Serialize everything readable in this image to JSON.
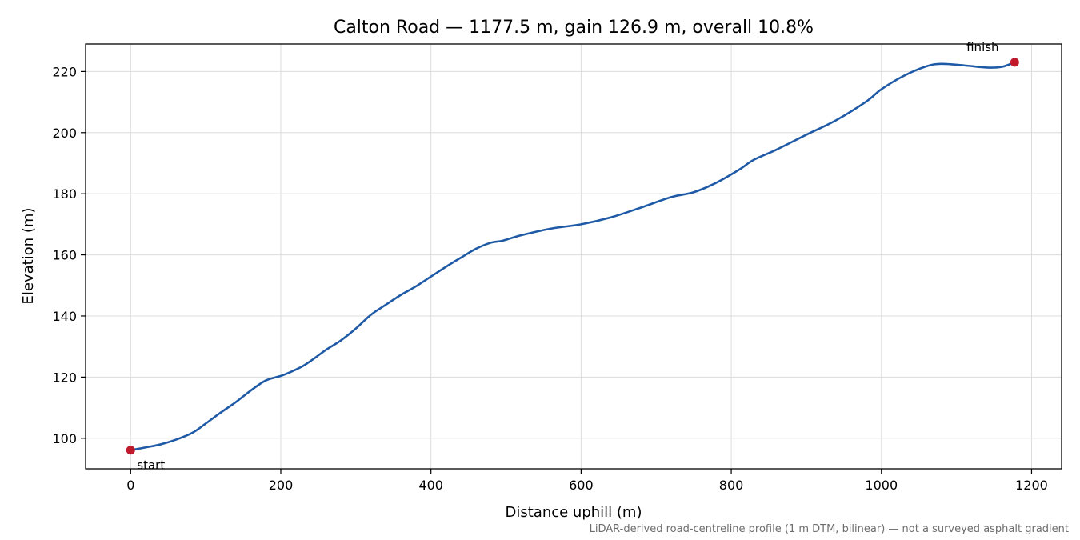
{
  "chart_data": {
    "type": "line",
    "title": "Calton Road — 1177.5 m, gain 126.9 m, overall 10.8%",
    "xlabel": "Distance uphill (m)",
    "ylabel": "Elevation (m)",
    "xlim": [
      -60,
      1240
    ],
    "ylim": [
      90,
      229
    ],
    "xticks": [
      0,
      200,
      400,
      600,
      800,
      1000,
      1200
    ],
    "yticks": [
      100,
      120,
      140,
      160,
      180,
      200,
      220
    ],
    "grid": true,
    "line_color": "#1f5aa6",
    "marker_color": "#c0192c",
    "series": [
      {
        "x": [
          0,
          20,
          40,
          60,
          80,
          90,
          100,
          120,
          140,
          160,
          180,
          200,
          215,
          230,
          245,
          260,
          280,
          300,
          320,
          340,
          360,
          380,
          400,
          420,
          440,
          460,
          480,
          495,
          520,
          560,
          600,
          640,
          680,
          720,
          750,
          780,
          810,
          830,
          860,
          900,
          940,
          980,
          1000,
          1030,
          1060,
          1080,
          1110,
          1140,
          1160,
          1177.5
        ],
        "y": [
          96.1,
          97.0,
          98.0,
          99.5,
          101.5,
          103.0,
          104.8,
          108.4,
          111.8,
          115.6,
          118.9,
          120.4,
          121.9,
          123.7,
          126.2,
          128.9,
          132.0,
          135.9,
          140.4,
          143.7,
          146.9,
          149.7,
          152.9,
          156.1,
          159.1,
          162.0,
          164.0,
          164.6,
          166.4,
          168.6,
          170.0,
          172.3,
          175.5,
          178.9,
          180.5,
          183.6,
          187.8,
          191.1,
          194.4,
          199.3,
          204.1,
          210.2,
          214.2,
          218.6,
          221.7,
          222.5,
          222.0,
          221.3,
          221.5,
          223.0
        ]
      }
    ],
    "annotations": [
      {
        "label": "start",
        "x": 0,
        "y": 96.1
      },
      {
        "label": "finish",
        "x": 1177.5,
        "y": 223.0
      }
    ],
    "footnote": "LiDAR-derived road-centreline profile (1 m DTM, bilinear) — not a surveyed asphalt gradient"
  }
}
